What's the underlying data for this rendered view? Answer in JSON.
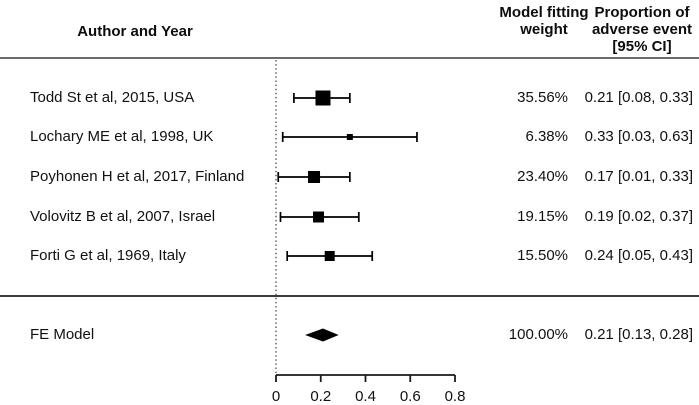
{
  "header": {
    "author_col": "Author and Year",
    "weight_col_line1": "Model fitting",
    "weight_col_line2": "weight",
    "prop_col_line1": "Proportion of",
    "prop_col_line2": "adverse event",
    "prop_col_line3": "[95% CI]"
  },
  "chart_data": {
    "type": "forest",
    "columns": [
      "Author and Year",
      "Model fitting weight",
      "Proportion of adverse event [95% CI]"
    ],
    "x_axis": {
      "range": [
        0,
        0.8
      ],
      "ticks": [
        0,
        0.2,
        0.4,
        0.6,
        0.8
      ],
      "tick_labels": [
        "0",
        "0.2",
        "0.4",
        "0.6",
        "0.8"
      ],
      "reference_line": 0
    },
    "rows": [
      {
        "author": "Todd St et al, 2015, USA",
        "weight_label": "35.56%",
        "weight": 35.56,
        "estimate_label": "0.21 [0.08, 0.33]",
        "mean": 0.21,
        "ci_low": 0.08,
        "ci_high": 0.33
      },
      {
        "author": "Lochary ME et al, 1998, UK",
        "weight_label": "6.38%",
        "weight": 6.38,
        "estimate_label": "0.33 [0.03, 0.63]",
        "mean": 0.33,
        "ci_low": 0.03,
        "ci_high": 0.63
      },
      {
        "author": "Poyhonen H et al, 2017, Finland",
        "weight_label": "23.40%",
        "weight": 23.4,
        "estimate_label": "0.17 [0.01, 0.33]",
        "mean": 0.17,
        "ci_low": 0.01,
        "ci_high": 0.33
      },
      {
        "author": "Volovitz B et al, 2007, Israel",
        "weight_label": "19.15%",
        "weight": 19.15,
        "estimate_label": "0.19 [0.02, 0.37]",
        "mean": 0.19,
        "ci_low": 0.02,
        "ci_high": 0.37
      },
      {
        "author": "Forti G et al, 1969, Italy",
        "weight_label": "15.50%",
        "weight": 15.5,
        "estimate_label": "0.24 [0.05, 0.43]",
        "mean": 0.24,
        "ci_low": 0.05,
        "ci_high": 0.43
      }
    ],
    "summary": {
      "label": "FE Model",
      "weight_label": "100.00%",
      "weight": 100.0,
      "estimate_label": "0.21 [0.13, 0.28]",
      "mean": 0.21,
      "ci_low": 0.13,
      "ci_high": 0.28
    }
  },
  "colors": {
    "marker": "#000000",
    "axis": "#1a1a1a",
    "header_rule": "#6b6b6b",
    "section_rule": "#3c3c3c",
    "text": "#111111"
  }
}
